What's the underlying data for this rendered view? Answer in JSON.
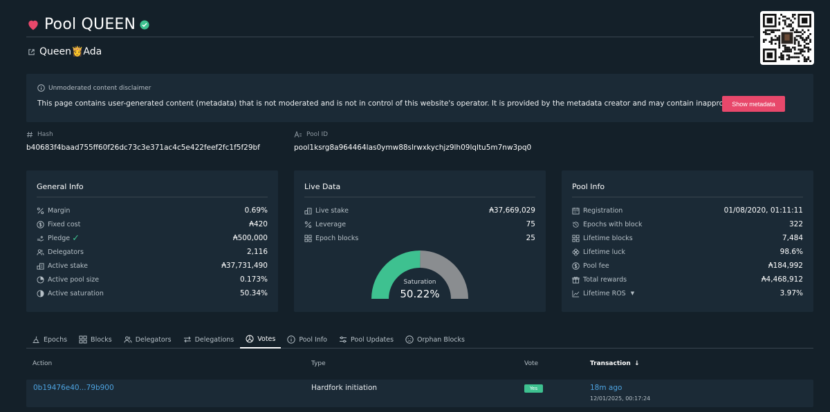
{
  "pool": {
    "name": "Pool QUEEN",
    "subtitle": "Queen👸Ada"
  },
  "disclaimer": {
    "heading": "Unmoderated content disclaimer",
    "text": "This page contains user-generated content (metadata) that is not moderated and is not in control of this website's operator. It is provided by the metadata creator and may contain inappropriate content",
    "button": "Show metadata"
  },
  "ids": {
    "hash_label": "Hash",
    "hash": "b40683f4baad755ff60f26dc73c3e371ac4c5e422feef2fc1f5f29bf",
    "pool_id_label": "Pool ID",
    "pool_id": "pool1ksrg8a964464las0ymw88slrwxkychjz9lh09lqltu5m7nw3pq0"
  },
  "general": {
    "title": "General Info",
    "rows": [
      {
        "label": "Margin",
        "value": "0.69%"
      },
      {
        "label": "Fixed cost",
        "value": "₳420"
      },
      {
        "label": "Pledge",
        "value": "₳500,000"
      },
      {
        "label": "Delegators",
        "value": "2,116"
      },
      {
        "label": "Active stake",
        "value": "₳37,731,490"
      },
      {
        "label": "Active pool size",
        "value": "0.173%"
      },
      {
        "label": "Active saturation",
        "value": "50.34%"
      }
    ]
  },
  "live": {
    "title": "Live Data",
    "rows": [
      {
        "label": "Live stake",
        "value": "₳37,669,029"
      },
      {
        "label": "Leverage",
        "value": "75"
      },
      {
        "label": "Epoch blocks",
        "value": "25"
      }
    ],
    "gauge_label": "Saturation",
    "gauge_value": "50.22%",
    "gauge_fraction": 0.5022,
    "gauge_fill_color": "#3ec190",
    "gauge_track_color": "#8a8d90"
  },
  "poolinfo": {
    "title": "Pool Info",
    "rows": [
      {
        "label": "Registration",
        "value": "01/08/2020, 01:11:11"
      },
      {
        "label": "Epochs with block",
        "value": "322"
      },
      {
        "label": "Lifetime blocks",
        "value": "7,484"
      },
      {
        "label": "Lifetime luck",
        "value": "98.6%"
      },
      {
        "label": "Pool fee",
        "value": "₳184,992"
      },
      {
        "label": "Total rewards",
        "value": "₳4,468,912"
      },
      {
        "label": "Lifetime ROS",
        "value": "3.97%"
      }
    ]
  },
  "tabs": [
    {
      "label": "Epochs",
      "icon": "epochs-icon"
    },
    {
      "label": "Blocks",
      "icon": "blocks-icon"
    },
    {
      "label": "Delegators",
      "icon": "delegators-icon"
    },
    {
      "label": "Delegations",
      "icon": "delegations-icon"
    },
    {
      "label": "Votes",
      "icon": "votes-icon",
      "active": true
    },
    {
      "label": "Pool Info",
      "icon": "info-icon"
    },
    {
      "label": "Pool Updates",
      "icon": "pool-updates-icon"
    },
    {
      "label": "Orphan Blocks",
      "icon": "orphan-blocks-icon"
    }
  ],
  "table": {
    "headers": {
      "action": "Action",
      "type": "Type",
      "vote": "Vote",
      "transaction": "Transaction"
    },
    "rows": [
      {
        "action": "0b19476e40...79b900",
        "type": "Hardfork initiation",
        "vote": "Yes",
        "tx_ago": "18m ago",
        "tx_time": "12/01/2025, 00:17:24"
      }
    ]
  },
  "colors": {
    "background": "#142029",
    "card": "#1b2a36",
    "accent_pink": "#e8486b",
    "accent_green": "#3ec190",
    "link_blue": "#4da3e0"
  }
}
